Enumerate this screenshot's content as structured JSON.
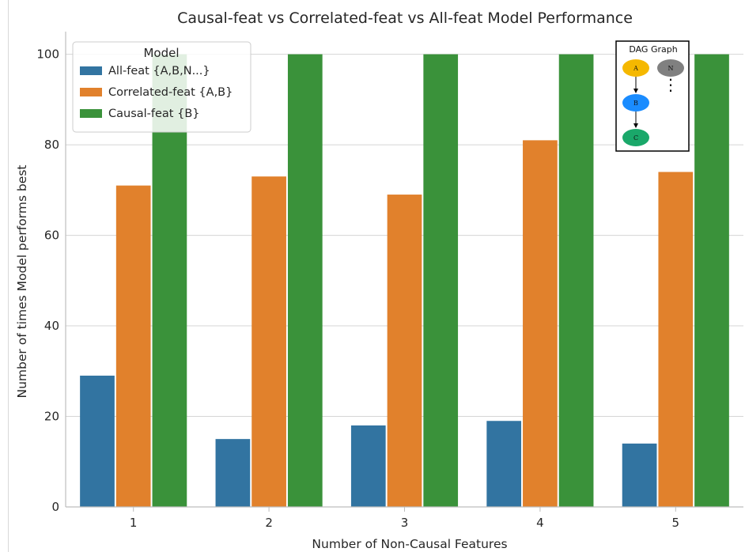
{
  "chart_data": {
    "type": "bar",
    "title": "Causal-feat vs Correlated-feat vs All-feat Model Performance",
    "xlabel": "Number of Non-Causal Features",
    "ylabel": "Number of times Model performs best",
    "categories": [
      "1",
      "2",
      "3",
      "4",
      "5"
    ],
    "ylim": [
      0,
      105
    ],
    "yticks": [
      0,
      20,
      40,
      60,
      80,
      100
    ],
    "grid": "horizontal",
    "legend_title": "Model",
    "legend_position": "top-left",
    "series": [
      {
        "name": "All-feat {A,B,N...}",
        "color": "#3274a1",
        "values": [
          29,
          15,
          18,
          19,
          14
        ]
      },
      {
        "name": "Correlated-feat {A,B}",
        "color": "#e1812c",
        "values": [
          71,
          73,
          69,
          81,
          74
        ]
      },
      {
        "name": "Causal-feat {B}",
        "color": "#3a923a",
        "values": [
          100,
          100,
          100,
          100,
          100
        ]
      }
    ]
  },
  "inset": {
    "title": "DAG Graph",
    "nodes": [
      {
        "id": "A",
        "label": "A",
        "color": "#f5b800"
      },
      {
        "id": "N",
        "label": "N",
        "color": "#808080"
      },
      {
        "id": "B",
        "label": "B",
        "color": "#1a8cff"
      },
      {
        "id": "C",
        "label": "C",
        "color": "#1aa86a"
      }
    ],
    "edges": [
      [
        "A",
        "B"
      ],
      [
        "B",
        "C"
      ]
    ],
    "ellipsis": "⋮"
  }
}
